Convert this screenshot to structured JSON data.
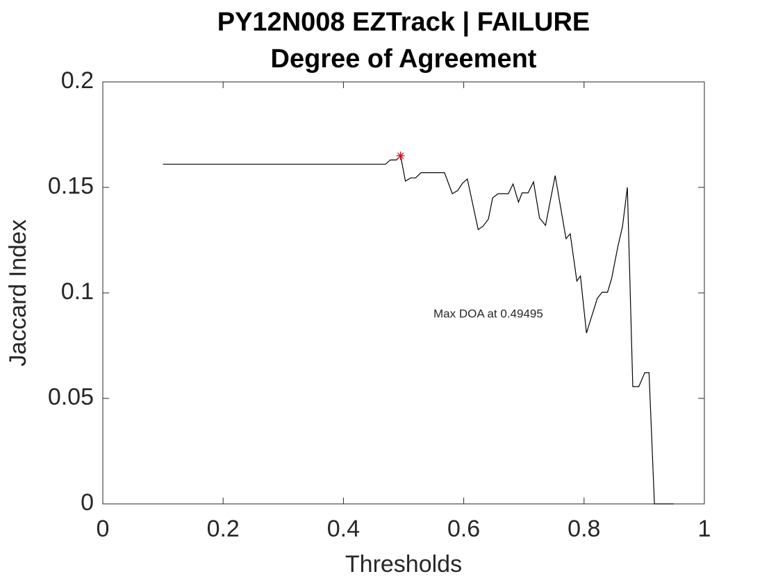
{
  "chart_data": {
    "type": "line",
    "title": "PY12N008 EZTrack | FAILURE",
    "subtitle": "Degree of Agreement",
    "xlabel": "Thresholds",
    "ylabel": "Jaccard Index",
    "series": [
      {
        "color": "#000000",
        "x": [
          0.1,
          0.47,
          0.478,
          0.488,
          0.495,
          0.503,
          0.512,
          0.52,
          0.529,
          0.568,
          0.581,
          0.59,
          0.598,
          0.606,
          0.624,
          0.632,
          0.641,
          0.648,
          0.657,
          0.674,
          0.682,
          0.691,
          0.697,
          0.707,
          0.716,
          0.726,
          0.736,
          0.752,
          0.77,
          0.777,
          0.788,
          0.794,
          0.804,
          0.822,
          0.83,
          0.839,
          0.846,
          0.856,
          0.864,
          0.872,
          0.881,
          0.891,
          0.901,
          0.908,
          0.917,
          0.949
        ],
        "values": [
          0.161,
          0.161,
          0.163,
          0.163,
          0.165,
          0.153,
          0.1545,
          0.1545,
          0.157,
          0.157,
          0.147,
          0.1485,
          0.152,
          0.154,
          0.13,
          0.1316,
          0.135,
          0.145,
          0.147,
          0.147,
          0.1516,
          0.143,
          0.1474,
          0.1474,
          0.1526,
          0.1355,
          0.132,
          0.1556,
          0.1257,
          0.128,
          0.1056,
          0.108,
          0.081,
          0.0974,
          0.1003,
          0.1003,
          0.107,
          0.1217,
          0.1316,
          0.15,
          0.0556,
          0.0556,
          0.0622,
          0.0622,
          0,
          0
        ]
      }
    ],
    "marker": {
      "x": 0.49495,
      "y": 0.165,
      "color": "#e0001b"
    },
    "annotation": "Max DOA at 0.49495",
    "xlim": [
      0,
      1
    ],
    "xticks": [
      0,
      0.2,
      0.4,
      0.6,
      0.8,
      1
    ],
    "ylim": [
      0,
      0.2
    ],
    "yticks": [
      0,
      0.05,
      0.1,
      0.15,
      0.2
    ],
    "grid": false
  }
}
